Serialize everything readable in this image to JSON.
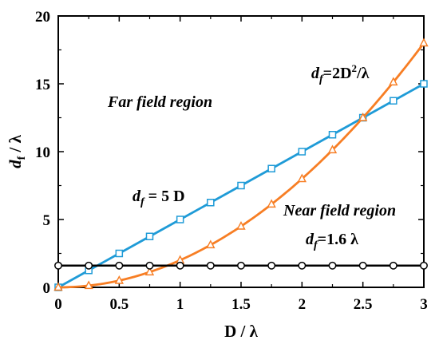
{
  "chart_data": {
    "type": "line",
    "xlabel": "D / λ",
    "ylabel": {
      "main": "d",
      "sub": "f",
      "rest": " / λ"
    },
    "xlim": [
      0,
      3
    ],
    "ylim": [
      0,
      20
    ],
    "xticks": [
      0,
      0.5,
      1,
      1.5,
      2,
      2.5,
      3
    ],
    "xtick_labels": [
      "0",
      "0.5",
      "1",
      "1.5",
      "2",
      "2.5",
      "3"
    ],
    "yticks": [
      0,
      5,
      10,
      15,
      20
    ],
    "ytick_labels": [
      "0",
      "5",
      "10",
      "15",
      "20"
    ],
    "grid": false,
    "series": [
      {
        "key": "linear",
        "color": "#1f9bd7",
        "marker": "square",
        "x": [
          0,
          0.25,
          0.5,
          0.75,
          1,
          1.25,
          1.5,
          1.75,
          2,
          2.25,
          2.5,
          2.75,
          3
        ],
        "y": [
          0,
          1.25,
          2.5,
          3.75,
          5,
          6.25,
          7.5,
          8.75,
          10,
          11.25,
          12.5,
          13.75,
          15
        ]
      },
      {
        "key": "quadratic",
        "color": "#f77e24",
        "marker": "triangle",
        "x": [
          0,
          0.25,
          0.5,
          0.75,
          1,
          1.25,
          1.5,
          1.75,
          2,
          2.25,
          2.5,
          2.75,
          3
        ],
        "y": [
          0,
          0.125,
          0.5,
          1.125,
          2,
          3.125,
          4.5,
          6.125,
          8,
          10.125,
          12.5,
          15.125,
          18
        ]
      },
      {
        "key": "constant",
        "color": "#000000",
        "marker": "circle",
        "x": [
          0,
          0.25,
          0.5,
          0.75,
          1,
          1.25,
          1.5,
          1.75,
          2,
          2.25,
          2.5,
          2.75,
          3
        ],
        "y": [
          1.6,
          1.6,
          1.6,
          1.6,
          1.6,
          1.6,
          1.6,
          1.6,
          1.6,
          1.6,
          1.6,
          1.6,
          1.6
        ]
      }
    ],
    "annotations": {
      "far_field": "Far field region",
      "near_field": "Near field region",
      "eq_linear": {
        "d": "d",
        "sub": "f",
        "rest": " = 5 D"
      },
      "eq_quadratic": {
        "d": "d",
        "sub": "f",
        "rest": "=2D",
        "sup": "2",
        "tail": "/λ"
      },
      "eq_constant": {
        "d": "d",
        "sub": "f",
        "rest": "=1.6 λ"
      }
    }
  }
}
